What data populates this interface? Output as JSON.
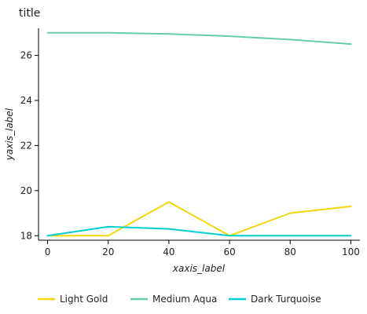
{
  "chart_data": {
    "type": "line",
    "title": "title",
    "xlabel": "xaxis_label",
    "ylabel": "yaxis_label",
    "x": [
      0,
      20,
      40,
      60,
      80,
      100
    ],
    "xlim": [
      -3,
      103
    ],
    "ylim": [
      17.8,
      27.2
    ],
    "xticks": [
      0,
      20,
      40,
      60,
      80,
      100
    ],
    "yticks": [
      18,
      20,
      22,
      24,
      26
    ],
    "grid": false,
    "legend_position": "bottom",
    "series": [
      {
        "name": "Light Gold",
        "color": "#f5d60a",
        "values": [
          18.0,
          18.0,
          19.5,
          18.0,
          19.0,
          19.3
        ]
      },
      {
        "name": "Medium Aqua",
        "color": "#66cdaa",
        "values": [
          27.0,
          27.0,
          26.95,
          26.85,
          26.7,
          26.5
        ]
      },
      {
        "name": "Dark Turquoise",
        "color": "#00ced1",
        "values": [
          18.0,
          18.4,
          18.3,
          18.0,
          18.0,
          18.0
        ]
      }
    ]
  }
}
